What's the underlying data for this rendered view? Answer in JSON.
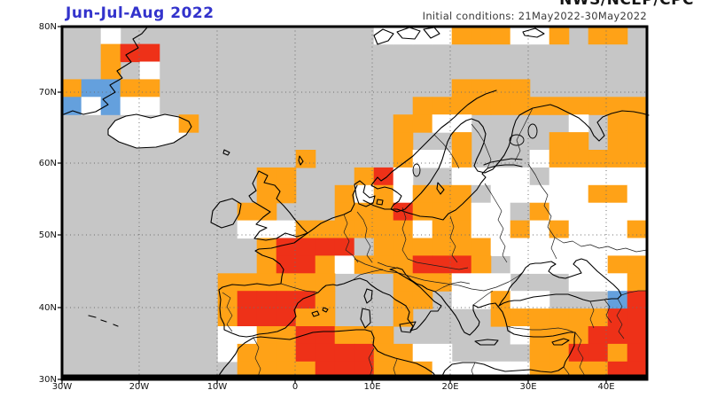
{
  "header": {
    "agency": "NWS/NCEP/CPC",
    "season_title": "Jun-Jul-Aug 2022",
    "initial_conditions": "Initial conditions: 21May2022-30May2022"
  },
  "map": {
    "lat_labels": [
      "80N",
      "70N",
      "60N",
      "50N",
      "40N",
      "30N"
    ],
    "lon_labels": [
      "30W",
      "20W",
      "10W",
      "0",
      "10E",
      "20E",
      "30E",
      "40E"
    ],
    "colors": {
      "base_gray": "#c6c6c6",
      "above_normal_orange": "#ffa217",
      "much_above_red": "#ee3118",
      "below_normal_blue": "#64a0dd",
      "equal_chances_white": "#ffffff",
      "gray_patch": "#c6c6c6",
      "title_blue": "#3333cc",
      "coastline_black": "#000000",
      "gridline_gray": "#6e6e6e"
    },
    "cell_color_key": {
      "o": "above_normal_orange",
      "r": "much_above_red",
      "w": "equal_chances_white",
      "b": "below_normal_blue",
      "g": "gray_patch"
    },
    "cells": [
      [
        2,
        0,
        "w"
      ],
      [
        16,
        0,
        "w"
      ],
      [
        17,
        0,
        "w"
      ],
      [
        18,
        0,
        "w"
      ],
      [
        19,
        0,
        "w"
      ],
      [
        20,
        0,
        "o"
      ],
      [
        21,
        0,
        "o"
      ],
      [
        22,
        0,
        "o"
      ],
      [
        23,
        0,
        "w"
      ],
      [
        24,
        0,
        "w"
      ],
      [
        25,
        0,
        "o"
      ],
      [
        27,
        0,
        "o"
      ],
      [
        28,
        0,
        "o"
      ],
      [
        2,
        1,
        "o"
      ],
      [
        3,
        1,
        "r"
      ],
      [
        4,
        1,
        "r"
      ],
      [
        2,
        2,
        "o"
      ],
      [
        4,
        2,
        "w"
      ],
      [
        0,
        3,
        "o"
      ],
      [
        1,
        3,
        "b"
      ],
      [
        2,
        3,
        "b"
      ],
      [
        3,
        3,
        "o"
      ],
      [
        4,
        3,
        "o"
      ],
      [
        20,
        3,
        "o"
      ],
      [
        21,
        3,
        "o"
      ],
      [
        22,
        3,
        "o"
      ],
      [
        23,
        3,
        "o"
      ],
      [
        0,
        4,
        "b"
      ],
      [
        1,
        4,
        "w"
      ],
      [
        2,
        4,
        "b"
      ],
      [
        3,
        4,
        "w"
      ],
      [
        4,
        4,
        "w"
      ],
      [
        18,
        4,
        "o"
      ],
      [
        19,
        4,
        "o"
      ],
      [
        20,
        4,
        "o"
      ],
      [
        21,
        4,
        "o"
      ],
      [
        22,
        4,
        "o"
      ],
      [
        23,
        4,
        "o"
      ],
      [
        24,
        4,
        "o"
      ],
      [
        25,
        4,
        "o"
      ],
      [
        26,
        4,
        "o"
      ],
      [
        27,
        4,
        "o"
      ],
      [
        28,
        4,
        "o"
      ],
      [
        29,
        4,
        "o"
      ],
      [
        6,
        5,
        "o"
      ],
      [
        17,
        5,
        "o"
      ],
      [
        18,
        5,
        "o"
      ],
      [
        19,
        5,
        "w"
      ],
      [
        20,
        5,
        "w"
      ],
      [
        26,
        5,
        "w"
      ],
      [
        28,
        5,
        "o"
      ],
      [
        29,
        5,
        "o"
      ],
      [
        17,
        6,
        "o"
      ],
      [
        20,
        6,
        "o"
      ],
      [
        25,
        6,
        "o"
      ],
      [
        26,
        6,
        "o"
      ],
      [
        28,
        6,
        "o"
      ],
      [
        29,
        6,
        "o"
      ],
      [
        12,
        7,
        "o"
      ],
      [
        17,
        7,
        "o"
      ],
      [
        18,
        7,
        "w"
      ],
      [
        19,
        7,
        "w"
      ],
      [
        20,
        7,
        "o"
      ],
      [
        24,
        7,
        "w"
      ],
      [
        25,
        7,
        "o"
      ],
      [
        26,
        7,
        "o"
      ],
      [
        27,
        7,
        "o"
      ],
      [
        28,
        7,
        "o"
      ],
      [
        29,
        7,
        "o"
      ],
      [
        10,
        8,
        "o"
      ],
      [
        11,
        8,
        "o"
      ],
      [
        15,
        8,
        "o"
      ],
      [
        16,
        8,
        "r"
      ],
      [
        17,
        8,
        "w"
      ],
      [
        20,
        8,
        "w"
      ],
      [
        21,
        8,
        "w"
      ],
      [
        22,
        8,
        "w"
      ],
      [
        23,
        8,
        "w"
      ],
      [
        24,
        8,
        "g"
      ],
      [
        25,
        8,
        "w"
      ],
      [
        26,
        8,
        "w"
      ],
      [
        27,
        8,
        "w"
      ],
      [
        28,
        8,
        "w"
      ],
      [
        29,
        8,
        "w"
      ],
      [
        10,
        9,
        "o"
      ],
      [
        11,
        9,
        "o"
      ],
      [
        14,
        9,
        "o"
      ],
      [
        15,
        9,
        "w"
      ],
      [
        16,
        9,
        "o"
      ],
      [
        17,
        9,
        "w"
      ],
      [
        18,
        9,
        "o"
      ],
      [
        19,
        9,
        "o"
      ],
      [
        20,
        9,
        "o"
      ],
      [
        21,
        9,
        "g"
      ],
      [
        22,
        9,
        "w"
      ],
      [
        23,
        9,
        "w"
      ],
      [
        24,
        9,
        "w"
      ],
      [
        25,
        9,
        "w"
      ],
      [
        26,
        9,
        "w"
      ],
      [
        27,
        9,
        "o"
      ],
      [
        28,
        9,
        "o"
      ],
      [
        29,
        9,
        "w"
      ],
      [
        9,
        10,
        "o"
      ],
      [
        10,
        10,
        "o"
      ],
      [
        14,
        10,
        "o"
      ],
      [
        15,
        10,
        "o"
      ],
      [
        16,
        10,
        "o"
      ],
      [
        17,
        10,
        "r"
      ],
      [
        18,
        10,
        "o"
      ],
      [
        19,
        10,
        "o"
      ],
      [
        20,
        10,
        "o"
      ],
      [
        21,
        10,
        "w"
      ],
      [
        22,
        10,
        "w"
      ],
      [
        23,
        10,
        "g"
      ],
      [
        24,
        10,
        "o"
      ],
      [
        25,
        10,
        "w"
      ],
      [
        26,
        10,
        "w"
      ],
      [
        27,
        10,
        "w"
      ],
      [
        28,
        10,
        "w"
      ],
      [
        29,
        10,
        "w"
      ],
      [
        9,
        11,
        "w"
      ],
      [
        10,
        11,
        "w"
      ],
      [
        11,
        11,
        "w"
      ],
      [
        12,
        11,
        "o"
      ],
      [
        13,
        11,
        "o"
      ],
      [
        14,
        11,
        "o"
      ],
      [
        15,
        11,
        "o"
      ],
      [
        16,
        11,
        "o"
      ],
      [
        17,
        11,
        "o"
      ],
      [
        18,
        11,
        "w"
      ],
      [
        19,
        11,
        "o"
      ],
      [
        20,
        11,
        "o"
      ],
      [
        21,
        11,
        "w"
      ],
      [
        22,
        11,
        "w"
      ],
      [
        23,
        11,
        "o"
      ],
      [
        24,
        11,
        "w"
      ],
      [
        25,
        11,
        "o"
      ],
      [
        26,
        11,
        "w"
      ],
      [
        27,
        11,
        "w"
      ],
      [
        28,
        11,
        "w"
      ],
      [
        29,
        11,
        "o"
      ],
      [
        10,
        12,
        "o"
      ],
      [
        11,
        12,
        "r"
      ],
      [
        12,
        12,
        "r"
      ],
      [
        13,
        12,
        "r"
      ],
      [
        14,
        12,
        "r"
      ],
      [
        15,
        12,
        "g"
      ],
      [
        16,
        12,
        "o"
      ],
      [
        17,
        12,
        "o"
      ],
      [
        18,
        12,
        "o"
      ],
      [
        19,
        12,
        "o"
      ],
      [
        20,
        12,
        "o"
      ],
      [
        21,
        12,
        "o"
      ],
      [
        22,
        12,
        "w"
      ],
      [
        23,
        12,
        "w"
      ],
      [
        24,
        12,
        "w"
      ],
      [
        25,
        12,
        "w"
      ],
      [
        26,
        12,
        "w"
      ],
      [
        27,
        12,
        "w"
      ],
      [
        28,
        12,
        "w"
      ],
      [
        29,
        12,
        "w"
      ],
      [
        10,
        13,
        "o"
      ],
      [
        11,
        13,
        "r"
      ],
      [
        12,
        13,
        "r"
      ],
      [
        13,
        13,
        "o"
      ],
      [
        14,
        13,
        "w"
      ],
      [
        15,
        13,
        "o"
      ],
      [
        16,
        13,
        "o"
      ],
      [
        17,
        13,
        "o"
      ],
      [
        18,
        13,
        "r"
      ],
      [
        19,
        13,
        "r"
      ],
      [
        20,
        13,
        "r"
      ],
      [
        21,
        13,
        "o"
      ],
      [
        23,
        13,
        "w"
      ],
      [
        24,
        13,
        "w"
      ],
      [
        25,
        13,
        "w"
      ],
      [
        26,
        13,
        "w"
      ],
      [
        27,
        13,
        "w"
      ],
      [
        28,
        13,
        "o"
      ],
      [
        29,
        13,
        "o"
      ],
      [
        8,
        14,
        "o"
      ],
      [
        9,
        14,
        "o"
      ],
      [
        10,
        14,
        "o"
      ],
      [
        11,
        14,
        "o"
      ],
      [
        12,
        14,
        "o"
      ],
      [
        13,
        14,
        "o"
      ],
      [
        17,
        14,
        "o"
      ],
      [
        18,
        14,
        "o"
      ],
      [
        19,
        14,
        "o"
      ],
      [
        20,
        14,
        "w"
      ],
      [
        21,
        14,
        "w"
      ],
      [
        22,
        14,
        "w"
      ],
      [
        26,
        14,
        "w"
      ],
      [
        27,
        14,
        "w"
      ],
      [
        28,
        14,
        "w"
      ],
      [
        29,
        14,
        "o"
      ],
      [
        8,
        15,
        "o"
      ],
      [
        9,
        15,
        "r"
      ],
      [
        10,
        15,
        "r"
      ],
      [
        11,
        15,
        "r"
      ],
      [
        12,
        15,
        "r"
      ],
      [
        13,
        15,
        "o"
      ],
      [
        17,
        15,
        "o"
      ],
      [
        18,
        15,
        "o"
      ],
      [
        20,
        15,
        "w"
      ],
      [
        21,
        15,
        "w"
      ],
      [
        22,
        15,
        "o"
      ],
      [
        23,
        15,
        "w"
      ],
      [
        24,
        15,
        "w"
      ],
      [
        28,
        15,
        "b"
      ],
      [
        29,
        15,
        "r"
      ],
      [
        8,
        16,
        "o"
      ],
      [
        9,
        16,
        "r"
      ],
      [
        10,
        16,
        "r"
      ],
      [
        11,
        16,
        "r"
      ],
      [
        12,
        16,
        "o"
      ],
      [
        13,
        16,
        "o"
      ],
      [
        17,
        16,
        "o"
      ],
      [
        22,
        16,
        "o"
      ],
      [
        23,
        16,
        "o"
      ],
      [
        24,
        16,
        "o"
      ],
      [
        25,
        16,
        "o"
      ],
      [
        26,
        16,
        "o"
      ],
      [
        27,
        16,
        "o"
      ],
      [
        28,
        16,
        "r"
      ],
      [
        29,
        16,
        "r"
      ],
      [
        8,
        17,
        "w"
      ],
      [
        9,
        17,
        "w"
      ],
      [
        10,
        17,
        "o"
      ],
      [
        11,
        17,
        "o"
      ],
      [
        12,
        17,
        "r"
      ],
      [
        13,
        17,
        "r"
      ],
      [
        14,
        17,
        "o"
      ],
      [
        15,
        17,
        "o"
      ],
      [
        16,
        17,
        "o"
      ],
      [
        23,
        17,
        "w"
      ],
      [
        24,
        17,
        "o"
      ],
      [
        25,
        17,
        "o"
      ],
      [
        26,
        17,
        "o"
      ],
      [
        27,
        17,
        "r"
      ],
      [
        28,
        17,
        "r"
      ],
      [
        29,
        17,
        "r"
      ],
      [
        8,
        18,
        "w"
      ],
      [
        9,
        18,
        "o"
      ],
      [
        10,
        18,
        "o"
      ],
      [
        11,
        18,
        "o"
      ],
      [
        12,
        18,
        "r"
      ],
      [
        13,
        18,
        "r"
      ],
      [
        14,
        18,
        "r"
      ],
      [
        15,
        18,
        "r"
      ],
      [
        16,
        18,
        "o"
      ],
      [
        17,
        18,
        "o"
      ],
      [
        18,
        18,
        "w"
      ],
      [
        19,
        18,
        "w"
      ],
      [
        24,
        18,
        "o"
      ],
      [
        25,
        18,
        "o"
      ],
      [
        26,
        18,
        "r"
      ],
      [
        27,
        18,
        "r"
      ],
      [
        28,
        18,
        "o"
      ],
      [
        29,
        18,
        "r"
      ],
      [
        9,
        19,
        "o"
      ],
      [
        10,
        19,
        "o"
      ],
      [
        11,
        19,
        "o"
      ],
      [
        12,
        19,
        "o"
      ],
      [
        13,
        19,
        "r"
      ],
      [
        14,
        19,
        "r"
      ],
      [
        15,
        19,
        "r"
      ],
      [
        16,
        19,
        "o"
      ],
      [
        17,
        19,
        "o"
      ],
      [
        18,
        19,
        "o"
      ],
      [
        19,
        19,
        "w"
      ],
      [
        20,
        19,
        "w"
      ],
      [
        21,
        19,
        "w"
      ],
      [
        22,
        19,
        "w"
      ],
      [
        23,
        19,
        "w"
      ],
      [
        24,
        19,
        "o"
      ],
      [
        25,
        19,
        "o"
      ],
      [
        26,
        19,
        "o"
      ],
      [
        27,
        19,
        "o"
      ],
      [
        28,
        19,
        "r"
      ],
      [
        29,
        19,
        "r"
      ]
    ]
  }
}
